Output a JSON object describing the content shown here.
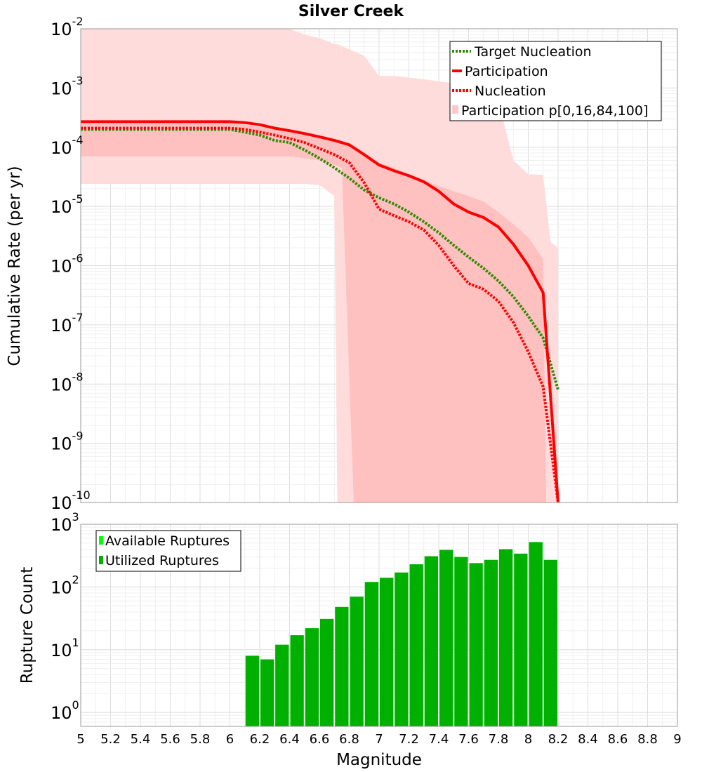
{
  "chart_data": [
    {
      "type": "line",
      "title": "Silver Creek",
      "ylabel": "Cumulative Rate (per yr)",
      "xlim": [
        5,
        9
      ],
      "ylim": [
        1e-10,
        0.01
      ],
      "yscale": "log",
      "y_tick_labels": [
        {
          "base": "10",
          "exp": "-2"
        },
        {
          "base": "10",
          "exp": "-3"
        },
        {
          "base": "10",
          "exp": "-4"
        },
        {
          "base": "10",
          "exp": "-5"
        },
        {
          "base": "10",
          "exp": "-6"
        },
        {
          "base": "10",
          "exp": "-7"
        },
        {
          "base": "10",
          "exp": "-8"
        },
        {
          "base": "10",
          "exp": "-9"
        },
        {
          "base": "10",
          "exp": "-10"
        }
      ],
      "legend_position": "top-right",
      "legend": [
        "Target Nucleation",
        "Participation",
        "Nucleation",
        "Participation p[0,16,84,100]"
      ],
      "x": [
        5.0,
        5.1,
        5.2,
        5.3,
        5.4,
        5.5,
        5.6,
        5.7,
        5.8,
        5.9,
        6.0,
        6.1,
        6.2,
        6.3,
        6.4,
        6.5,
        6.6,
        6.7,
        6.8,
        6.9,
        7.0,
        7.1,
        7.2,
        7.3,
        7.4,
        7.5,
        7.6,
        7.7,
        7.8,
        7.9,
        8.0,
        8.1,
        8.2
      ],
      "series": [
        {
          "name": "Target Nucleation",
          "style": "dotted",
          "color": "#2e8b00",
          "values": [
            0.0002,
            0.0002,
            0.0002,
            0.0002,
            0.0002,
            0.0002,
            0.0002,
            0.0002,
            0.0002,
            0.0002,
            0.0002,
            0.00018,
            0.00016,
            0.00013,
            0.00012,
            9e-05,
            6.5e-05,
            4.5e-05,
            3e-05,
            1.9e-05,
            1.4e-05,
            1.1e-05,
            8e-06,
            5.5e-06,
            3.6e-06,
            2.2e-06,
            1.4e-06,
            9e-07,
            5.5e-07,
            3e-07,
            1.4e-07,
            6e-08,
            8e-09
          ]
        },
        {
          "name": "Participation",
          "style": "solid",
          "color": "#ff0000",
          "values": [
            0.00027,
            0.00027,
            0.00027,
            0.00027,
            0.00027,
            0.00027,
            0.00027,
            0.00027,
            0.00027,
            0.00027,
            0.00027,
            0.00026,
            0.00024,
            0.00021,
            0.00019,
            0.00017,
            0.00015,
            0.00013,
            0.00011,
            7.5e-05,
            5e-05,
            4e-05,
            3.3e-05,
            2.6e-05,
            1.8e-05,
            1.1e-05,
            8e-06,
            6.5e-06,
            4.5e-06,
            2.3e-06,
            1e-06,
            3.5e-07,
            1e-10
          ]
        },
        {
          "name": "Nucleation",
          "style": "dotted",
          "color": "#ff0000",
          "values": [
            0.00021,
            0.00021,
            0.00021,
            0.00021,
            0.00021,
            0.00021,
            0.00021,
            0.00021,
            0.00021,
            0.00021,
            0.00021,
            0.0002,
            0.00018,
            0.00016,
            0.00014,
            0.00012,
            9.5e-05,
            7.5e-05,
            5.5e-05,
            2.5e-05,
            9e-06,
            7e-06,
            5.5e-06,
            4e-06,
            2.2e-06,
            1e-06,
            5e-07,
            4e-07,
            2.5e-07,
            1.1e-07,
            3.5e-08,
            9e-09,
            1e-10
          ]
        }
      ],
      "bands": [
        {
          "name": "Participation p[0,100]",
          "color": "#ffdcdc",
          "x": [
            5.0,
            5.1,
            5.2,
            5.3,
            5.4,
            5.5,
            5.6,
            5.7,
            5.8,
            5.9,
            6.0,
            6.1,
            6.2,
            6.3,
            6.4,
            6.5,
            6.6,
            6.7,
            6.72,
            6.8,
            6.9,
            7.0,
            7.1,
            7.2,
            7.3,
            7.4,
            7.5,
            7.6,
            7.7,
            7.8,
            7.9,
            8.0,
            8.1,
            8.15,
            8.2
          ],
          "lower": [
            2.4e-05,
            2.4e-05,
            2.4e-05,
            2.4e-05,
            2.4e-05,
            2.4e-05,
            2.4e-05,
            2.4e-05,
            2.4e-05,
            2.4e-05,
            2.4e-05,
            2.4e-05,
            2.4e-05,
            2.4e-05,
            2.4e-05,
            2.4e-05,
            2.3e-05,
            1.5e-05,
            1e-10,
            1e-10,
            1e-10,
            1e-10,
            1e-10,
            1e-10,
            1e-10,
            1e-10,
            1e-10,
            1e-10,
            1e-10,
            1e-10,
            1e-10,
            1e-10,
            1e-10,
            1e-10,
            1e-10
          ],
          "upper": [
            0.01,
            0.01,
            0.01,
            0.01,
            0.01,
            0.01,
            0.01,
            0.01,
            0.01,
            0.01,
            0.01,
            0.01,
            0.01,
            0.01,
            0.01,
            0.008,
            0.007,
            0.0055,
            0.0055,
            0.0045,
            0.0035,
            0.0016,
            0.0016,
            0.0015,
            0.0014,
            0.0013,
            0.0012,
            0.001,
            0.0009,
            0.0006,
            6e-05,
            3.5e-05,
            3.4e-05,
            2.5e-06,
            2e-06
          ]
        },
        {
          "name": "Participation p[16,84]",
          "color": "#ffc0c0",
          "x": [
            5.0,
            5.1,
            5.2,
            5.3,
            5.4,
            5.5,
            5.6,
            5.7,
            5.8,
            5.9,
            6.0,
            6.1,
            6.2,
            6.3,
            6.4,
            6.5,
            6.6,
            6.7,
            6.75,
            6.83,
            6.9,
            7.0,
            7.1,
            7.2,
            7.3,
            7.4,
            7.5,
            7.6,
            7.7,
            7.8,
            7.9,
            8.0,
            8.1,
            8.12
          ],
          "lower": [
            7e-05,
            7e-05,
            7e-05,
            7e-05,
            7e-05,
            7e-05,
            7e-05,
            7e-05,
            7e-05,
            7e-05,
            7e-05,
            7e-05,
            7e-05,
            7e-05,
            7e-05,
            6.5e-05,
            6e-05,
            5e-05,
            4.5e-05,
            1e-10,
            1e-10,
            1e-10,
            1e-10,
            1e-10,
            1e-10,
            1e-10,
            1e-10,
            1e-10,
            1e-10,
            1e-10,
            1e-10,
            1e-10,
            1e-10,
            1e-10
          ],
          "upper": [
            0.00025,
            0.00025,
            0.00025,
            0.00025,
            0.00025,
            0.00025,
            0.00025,
            0.00025,
            0.00025,
            0.00025,
            0.00025,
            0.00024,
            0.00022,
            0.0002,
            0.00018,
            0.00016,
            0.00015,
            0.00013,
            0.00012,
            0.0001,
            8e-05,
            5.5e-05,
            4.5e-05,
            3.5e-05,
            2.8e-05,
            2.2e-05,
            1.8e-05,
            1.5e-05,
            1.2e-05,
            8e-06,
            5e-06,
            3e-06,
            1.3e-06,
            1e-10
          ]
        }
      ]
    },
    {
      "type": "bar",
      "ylabel": "Rupture Count",
      "xlabel": "Magnitude",
      "xlim": [
        5,
        9
      ],
      "ylim": [
        0.6,
        1000
      ],
      "yscale": "log",
      "y_tick_labels": [
        {
          "base": "10",
          "exp": "3"
        },
        {
          "base": "10",
          "exp": "2"
        },
        {
          "base": "10",
          "exp": "1"
        },
        {
          "base": "10",
          "exp": "0"
        }
      ],
      "x_tick_labels": [
        "5",
        "5.2",
        "5.4",
        "5.6",
        "5.8",
        "6",
        "6.2",
        "6.4",
        "6.6",
        "6.8",
        "7",
        "7.2",
        "7.4",
        "7.6",
        "7.8",
        "8",
        "8.2",
        "8.4",
        "8.6",
        "8.8",
        "9"
      ],
      "bin_width": 0.1,
      "legend_position": "top-left",
      "legend": [
        "Available Ruptures",
        "Utilized Ruptures"
      ],
      "series": [
        {
          "name": "Available Ruptures",
          "color": "#00ff00",
          "categories": [
            6.15,
            6.25,
            6.35,
            6.45,
            6.55,
            6.65,
            6.75,
            6.85,
            6.95,
            7.05,
            7.15,
            7.25,
            7.35,
            7.45,
            7.55,
            7.65,
            7.75,
            7.85,
            7.95,
            8.05,
            8.15
          ],
          "values": [
            8,
            7,
            12,
            17,
            22,
            31,
            48,
            70,
            120,
            140,
            170,
            230,
            310,
            390,
            300,
            240,
            270,
            400,
            340,
            520,
            270
          ]
        },
        {
          "name": "Utilized Ruptures",
          "color": "#00b000",
          "categories": [
            6.15,
            6.25,
            6.35,
            6.45,
            6.55,
            6.65,
            6.75,
            6.85,
            6.95,
            7.05,
            7.15,
            7.25,
            7.35,
            7.45,
            7.55,
            7.65,
            7.75,
            7.85,
            7.95,
            8.05,
            8.15
          ],
          "values": [
            8,
            7,
            12,
            17,
            22,
            31,
            48,
            70,
            120,
            140,
            170,
            230,
            310,
            390,
            300,
            240,
            270,
            400,
            340,
            520,
            270
          ]
        }
      ]
    }
  ]
}
